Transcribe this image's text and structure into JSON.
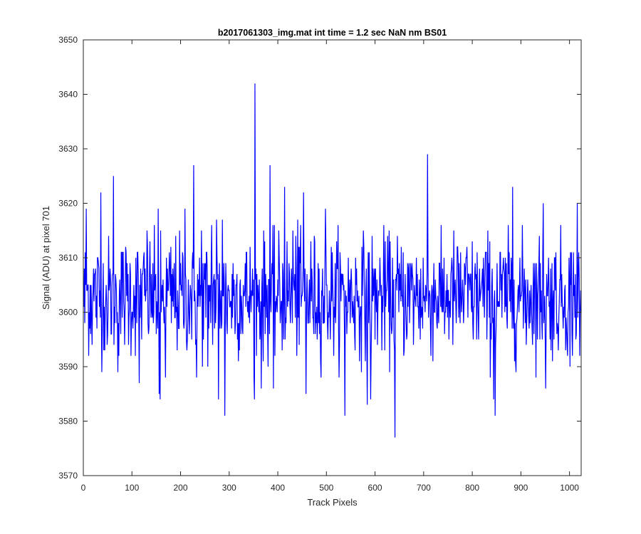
{
  "chart_data": {
    "type": "line",
    "title": "b2017061303_img.mat int time = 1.2 sec  NaN nm BS01",
    "xlabel": "Track Pixels",
    "ylabel": "Signal (ADU) at pixel 701",
    "xlim": [
      0,
      1024
    ],
    "ylim": [
      3570,
      3650
    ],
    "xticks": [
      0,
      100,
      200,
      300,
      400,
      500,
      600,
      700,
      800,
      900,
      1000
    ],
    "yticks": [
      3570,
      3580,
      3590,
      3600,
      3610,
      3620,
      3630,
      3640,
      3650
    ],
    "grid": false,
    "legend": "none",
    "series": [
      {
        "color": "#0000ff",
        "noise_stats": {
          "n_points": 1024,
          "mean": 3603,
          "std": 5.5,
          "min": 3577,
          "max": 3642
        },
        "notable_points": [
          {
            "x": 2,
            "y": 3598
          },
          {
            "x": 5,
            "y": 3619
          },
          {
            "x": 17,
            "y": 3594
          },
          {
            "x": 35,
            "y": 3622
          },
          {
            "x": 49,
            "y": 3596
          },
          {
            "x": 61,
            "y": 3625
          },
          {
            "x": 70,
            "y": 3589
          },
          {
            "x": 114,
            "y": 3587
          },
          {
            "x": 130,
            "y": 3615
          },
          {
            "x": 153,
            "y": 3619
          },
          {
            "x": 155,
            "y": 3585
          },
          {
            "x": 157,
            "y": 3584
          },
          {
            "x": 168,
            "y": 3588
          },
          {
            "x": 208,
            "y": 3619
          },
          {
            "x": 226,
            "y": 3627
          },
          {
            "x": 232,
            "y": 3588
          },
          {
            "x": 242,
            "y": 3615
          },
          {
            "x": 255,
            "y": 3590
          },
          {
            "x": 263,
            "y": 3616
          },
          {
            "x": 273,
            "y": 3617
          },
          {
            "x": 277,
            "y": 3584
          },
          {
            "x": 285,
            "y": 3617
          },
          {
            "x": 290,
            "y": 3581
          },
          {
            "x": 351,
            "y": 3584
          },
          {
            "x": 352,
            "y": 3642
          },
          {
            "x": 365,
            "y": 3586
          },
          {
            "x": 383,
            "y": 3627
          },
          {
            "x": 390,
            "y": 3586
          },
          {
            "x": 413,
            "y": 3623
          },
          {
            "x": 430,
            "y": 3615
          },
          {
            "x": 440,
            "y": 3617
          },
          {
            "x": 452,
            "y": 3622
          },
          {
            "x": 457,
            "y": 3585
          },
          {
            "x": 497,
            "y": 3619
          },
          {
            "x": 537,
            "y": 3581
          },
          {
            "x": 583,
            "y": 3583
          },
          {
            "x": 590,
            "y": 3584
          },
          {
            "x": 640,
            "y": 3577
          },
          {
            "x": 707,
            "y": 3629
          },
          {
            "x": 786,
            "y": 3610
          },
          {
            "x": 843,
            "y": 3584
          },
          {
            "x": 846,
            "y": 3581
          },
          {
            "x": 882,
            "y": 3623
          },
          {
            "x": 945,
            "y": 3620
          },
          {
            "x": 950,
            "y": 3586
          },
          {
            "x": 1000,
            "y": 3590
          },
          {
            "x": 1015,
            "y": 3620
          },
          {
            "x": 1020,
            "y": 3592
          }
        ]
      }
    ]
  }
}
